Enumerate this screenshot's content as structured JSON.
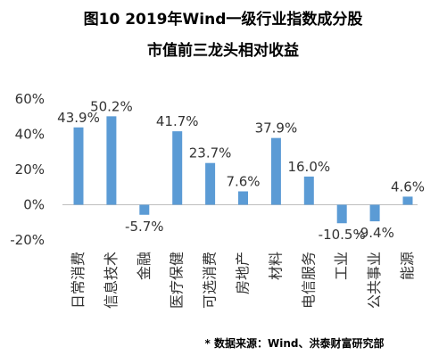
{
  "title_line1": "图10  2019年Wind一级行业指数成分股",
  "title_line2": "市值前三龙头相对收益",
  "source": "* 数据来源：Wind、洪泰财富研究部",
  "bar_color": "#5b9bd5",
  "chart_data": {
    "type": "bar",
    "title": "图10  2019年Wind一级行业指数成分股 市值前三龙头相对收益",
    "categories": [
      "日常消费",
      "信息技术",
      "金融",
      "医疗保健",
      "可选消费",
      "房地产",
      "材料",
      "电信服务",
      "工业",
      "公共事业",
      "能源"
    ],
    "values": [
      43.9,
      50.2,
      -5.7,
      41.7,
      23.7,
      7.6,
      37.9,
      16.0,
      -10.5,
      -9.4,
      4.6
    ],
    "data_labels": [
      "43.9%",
      "50.2%",
      "-5.7%",
      "41.7%",
      "23.7%",
      "7.6%",
      "37.9%",
      "16.0%",
      "-10.5%",
      "-9.4%",
      "4.6%"
    ],
    "y_ticks": [
      60,
      40,
      20,
      0,
      -20
    ],
    "y_tick_labels": [
      "60%",
      "40%",
      "20%",
      "0%",
      "-20%"
    ],
    "ylim": [
      -20,
      60
    ],
    "grid": false,
    "legend": "none",
    "xlabel": "",
    "ylabel": ""
  }
}
